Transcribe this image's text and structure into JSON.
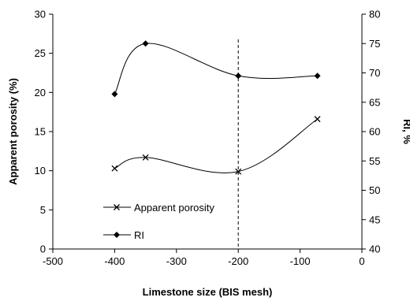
{
  "chart_data": {
    "type": "line",
    "xlabel": "Limestone size (BIS mesh)",
    "ylabel_left": "Apparent porosity (%)",
    "ylabel_right": "RI, %",
    "xlim": [
      -500,
      0
    ],
    "ylim_left": [
      0,
      30
    ],
    "ylim_right": [
      40,
      80
    ],
    "x_ticks": [
      -500,
      -400,
      -300,
      -200,
      -100,
      0
    ],
    "y_ticks_left": [
      0,
      5,
      10,
      15,
      20,
      25,
      30
    ],
    "y_ticks_right": [
      40,
      45,
      50,
      55,
      60,
      65,
      70,
      75,
      80
    ],
    "x_tick_labels": [
      "-500",
      "-400",
      "-300",
      "-200",
      "-100",
      "0"
    ],
    "y_tick_labels_left": [
      "0",
      "5",
      "10",
      "15",
      "20",
      "25",
      "30"
    ],
    "y_tick_labels_right": [
      "40",
      "45",
      "50",
      "55",
      "60",
      "65",
      "70",
      "75",
      "80"
    ],
    "grid": false,
    "reference_line": {
      "x": -200,
      "style": "dashed"
    },
    "legend_placement": "bottom-left",
    "series": [
      {
        "name": "Apparent porosity",
        "axis": "left",
        "marker": "x",
        "color": "#000000",
        "x": [
          -400,
          -350,
          -200,
          -72
        ],
        "y": [
          10.3,
          11.7,
          9.9,
          16.6
        ]
      },
      {
        "name": "RI",
        "axis": "right",
        "marker": "diamond",
        "color": "#000000",
        "x": [
          -400,
          -350,
          -200,
          -72
        ],
        "y": [
          66.4,
          75.0,
          69.5,
          69.5
        ]
      }
    ]
  }
}
